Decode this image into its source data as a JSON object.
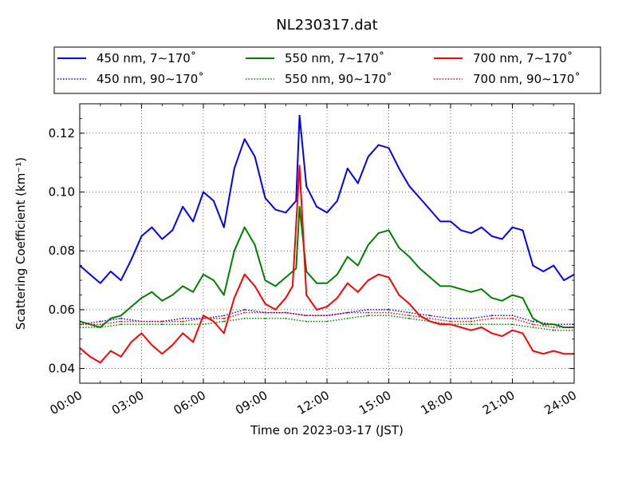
{
  "chart_data": {
    "type": "line",
    "title": "NL230317.dat",
    "xlabel": "Time on 2023-03-17 (JST)",
    "ylabel": "Scattering Coefficient (km⁻¹)",
    "xlim": [
      "00:00",
      "24:00"
    ],
    "ylim": [
      0.035,
      0.13
    ],
    "x_ticks": [
      "00:00",
      "03:00",
      "06:00",
      "09:00",
      "12:00",
      "15:00",
      "18:00",
      "21:00",
      "24:00"
    ],
    "y_ticks": [
      "0.04",
      "0.06",
      "0.08",
      "0.10",
      "0.12"
    ],
    "grid": true,
    "legend_position": "top",
    "series": [
      {
        "name": "450 nm, 7∼170˚",
        "color": "#0000ff",
        "style": "solid",
        "x": [
          "00:00",
          "00:30",
          "01:00",
          "01:30",
          "02:00",
          "02:30",
          "03:00",
          "03:30",
          "04:00",
          "04:30",
          "05:00",
          "05:30",
          "06:00",
          "06:30",
          "07:00",
          "07:30",
          "08:00",
          "08:30",
          "09:00",
          "09:30",
          "10:00",
          "10:30",
          "10:40",
          "11:00",
          "11:30",
          "12:00",
          "12:30",
          "13:00",
          "13:30",
          "14:00",
          "14:30",
          "15:00",
          "15:30",
          "16:00",
          "16:30",
          "17:00",
          "17:30",
          "18:00",
          "18:30",
          "19:00",
          "19:30",
          "20:00",
          "20:30",
          "21:00",
          "21:30",
          "22:00",
          "22:30",
          "23:00",
          "23:30",
          "24:00"
        ],
        "y": [
          0.075,
          0.072,
          0.069,
          0.073,
          0.07,
          0.077,
          0.085,
          0.088,
          0.084,
          0.087,
          0.095,
          0.09,
          0.1,
          0.097,
          0.088,
          0.108,
          0.118,
          0.112,
          0.098,
          0.094,
          0.093,
          0.097,
          0.126,
          0.102,
          0.095,
          0.093,
          0.097,
          0.108,
          0.103,
          0.112,
          0.116,
          0.115,
          0.108,
          0.102,
          0.098,
          0.094,
          0.09,
          0.09,
          0.087,
          0.086,
          0.088,
          0.085,
          0.084,
          0.088,
          0.087,
          0.075,
          0.073,
          0.075,
          0.07,
          0.072
        ]
      },
      {
        "name": "450 nm, 90∼170˚",
        "color": "#0000ff",
        "style": "dotted",
        "x": [
          "00:00",
          "01:00",
          "02:00",
          "03:00",
          "04:00",
          "05:00",
          "06:00",
          "07:00",
          "08:00",
          "09:00",
          "10:00",
          "11:00",
          "12:00",
          "13:00",
          "14:00",
          "15:00",
          "16:00",
          "17:00",
          "18:00",
          "19:00",
          "20:00",
          "21:00",
          "22:00",
          "23:00",
          "24:00"
        ],
        "y": [
          0.055,
          0.056,
          0.057,
          0.056,
          0.056,
          0.057,
          0.057,
          0.058,
          0.06,
          0.059,
          0.059,
          0.058,
          0.058,
          0.059,
          0.06,
          0.06,
          0.059,
          0.058,
          0.057,
          0.057,
          0.058,
          0.058,
          0.056,
          0.055,
          0.055
        ]
      },
      {
        "name": "550 nm, 7∼170˚",
        "color": "#008000",
        "style": "solid",
        "x": [
          "00:00",
          "00:30",
          "01:00",
          "01:30",
          "02:00",
          "02:30",
          "03:00",
          "03:30",
          "04:00",
          "04:30",
          "05:00",
          "05:30",
          "06:00",
          "06:30",
          "07:00",
          "07:30",
          "08:00",
          "08:30",
          "09:00",
          "09:30",
          "10:00",
          "10:30",
          "10:40",
          "11:00",
          "11:30",
          "12:00",
          "12:30",
          "13:00",
          "13:30",
          "14:00",
          "14:30",
          "15:00",
          "15:30",
          "16:00",
          "16:30",
          "17:00",
          "17:30",
          "18:00",
          "18:30",
          "19:00",
          "19:30",
          "20:00",
          "20:30",
          "21:00",
          "21:30",
          "22:00",
          "22:30",
          "23:00",
          "23:30",
          "24:00"
        ],
        "y": [
          0.056,
          0.055,
          0.054,
          0.057,
          0.058,
          0.061,
          0.064,
          0.066,
          0.063,
          0.065,
          0.068,
          0.066,
          0.072,
          0.07,
          0.065,
          0.08,
          0.088,
          0.082,
          0.07,
          0.068,
          0.071,
          0.074,
          0.095,
          0.073,
          0.069,
          0.069,
          0.072,
          0.078,
          0.075,
          0.082,
          0.086,
          0.087,
          0.081,
          0.078,
          0.074,
          0.071,
          0.068,
          0.068,
          0.067,
          0.066,
          0.067,
          0.064,
          0.063,
          0.065,
          0.064,
          0.057,
          0.055,
          0.055,
          0.054,
          0.054
        ]
      },
      {
        "name": "550 nm, 90∼170˚",
        "color": "#008000",
        "style": "dotted",
        "x": [
          "00:00",
          "01:00",
          "02:00",
          "03:00",
          "04:00",
          "05:00",
          "06:00",
          "07:00",
          "08:00",
          "09:00",
          "10:00",
          "11:00",
          "12:00",
          "13:00",
          "14:00",
          "15:00",
          "16:00",
          "17:00",
          "18:00",
          "19:00",
          "20:00",
          "21:00",
          "22:00",
          "23:00",
          "24:00"
        ],
        "y": [
          0.054,
          0.054,
          0.055,
          0.055,
          0.055,
          0.055,
          0.055,
          0.056,
          0.057,
          0.057,
          0.057,
          0.056,
          0.056,
          0.057,
          0.058,
          0.058,
          0.057,
          0.056,
          0.055,
          0.055,
          0.055,
          0.055,
          0.054,
          0.053,
          0.053
        ]
      },
      {
        "name": "700 nm, 7∼170˚",
        "color": "#ff0000",
        "style": "solid",
        "x": [
          "00:00",
          "00:30",
          "01:00",
          "01:30",
          "02:00",
          "02:30",
          "03:00",
          "03:30",
          "04:00",
          "04:30",
          "05:00",
          "05:30",
          "06:00",
          "06:30",
          "07:00",
          "07:30",
          "08:00",
          "08:30",
          "09:00",
          "09:30",
          "10:00",
          "10:20",
          "10:40",
          "11:00",
          "11:30",
          "12:00",
          "12:30",
          "13:00",
          "13:30",
          "14:00",
          "14:30",
          "15:00",
          "15:30",
          "16:00",
          "16:30",
          "17:00",
          "17:30",
          "18:00",
          "18:30",
          "19:00",
          "19:30",
          "20:00",
          "20:30",
          "21:00",
          "21:30",
          "22:00",
          "22:30",
          "23:00",
          "23:30",
          "24:00"
        ],
        "y": [
          0.047,
          0.044,
          0.042,
          0.046,
          0.044,
          0.049,
          0.052,
          0.048,
          0.045,
          0.048,
          0.052,
          0.049,
          0.058,
          0.056,
          0.052,
          0.064,
          0.072,
          0.068,
          0.062,
          0.06,
          0.064,
          0.068,
          0.109,
          0.065,
          0.06,
          0.061,
          0.064,
          0.069,
          0.066,
          0.07,
          0.072,
          0.071,
          0.065,
          0.062,
          0.058,
          0.056,
          0.055,
          0.055,
          0.054,
          0.053,
          0.054,
          0.052,
          0.051,
          0.053,
          0.052,
          0.046,
          0.045,
          0.046,
          0.045,
          0.045
        ]
      },
      {
        "name": "700 nm, 90∼170˚",
        "color": "#ff0000",
        "style": "dotted",
        "x": [
          "00:00",
          "01:00",
          "02:00",
          "03:00",
          "04:00",
          "05:00",
          "06:00",
          "07:00",
          "08:00",
          "09:00",
          "10:00",
          "11:00",
          "12:00",
          "13:00",
          "14:00",
          "15:00",
          "16:00",
          "17:00",
          "18:00",
          "19:00",
          "20:00",
          "21:00",
          "22:00",
          "23:00",
          "24:00"
        ],
        "y": [
          0.055,
          0.055,
          0.056,
          0.056,
          0.056,
          0.056,
          0.057,
          0.057,
          0.059,
          0.059,
          0.059,
          0.058,
          0.058,
          0.059,
          0.059,
          0.059,
          0.058,
          0.057,
          0.056,
          0.056,
          0.057,
          0.057,
          0.055,
          0.054,
          0.054
        ]
      }
    ]
  }
}
